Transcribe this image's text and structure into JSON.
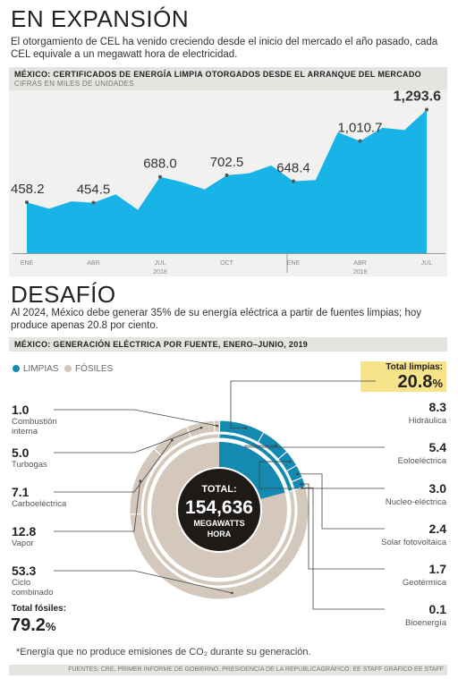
{
  "section1": {
    "title": "EN EXPANSIÓN",
    "lead": "El otorgamiento de CEL ha venido creciendo desde el inicio del mercado el año pasado, cada CEL equivale a un megawatt hora de electricidad.",
    "bar_title": "MÉXICO: CERTIFICADOS DE ENERGÍA LIMPIA OTORGADOS DESDE EL ARRANQUE DEL MERCADO",
    "bar_sub": "CIFRAS EN MILES DE UNIDADES"
  },
  "section2": {
    "title": "DESAFÍO",
    "lead": "Al 2024, México debe generar 35% de su energía eléctrica a partir de fuentes limpias; hoy produce apenas 20.8 por ciento.",
    "bar_title": "MÉXICO: GENERACIÓN ELÉCTRICA POR FUENTE, ENERO–JUNIO, 2019",
    "legend_clean": "LIMPIAS",
    "legend_fossil": "FÓSILES",
    "total_clean_label": "Total limpias:",
    "total_clean_value": "20.8",
    "total_fossil_label": "Total fósiles:",
    "total_fossil_value": "79.2",
    "pct": "%",
    "center_l1": "TOTAL:",
    "center_l2": "154,636",
    "center_l3": "MEGAWATTS",
    "center_l4": "HORA",
    "fossil_items": [
      {
        "value": "1.0",
        "label": "Combustión interna"
      },
      {
        "value": "5.0",
        "label": "Turbogas"
      },
      {
        "value": "7.1",
        "label": "Carboeléctrica"
      },
      {
        "value": "12.8",
        "label": "Vapor"
      },
      {
        "value": "53.3",
        "label": "Ciclo combinado"
      }
    ],
    "clean_items": [
      {
        "value": "8.3",
        "label": "Hidráulica"
      },
      {
        "value": "5.4",
        "label": "Eoloeléctrica"
      },
      {
        "value": "3.0",
        "label": "Nucleo-eléctrica"
      },
      {
        "value": "2.4",
        "label": "Solar fotovoltáica"
      },
      {
        "value": "1.7",
        "label": "Geotérmica"
      },
      {
        "value": "0.1",
        "label": "Bioenergía"
      }
    ]
  },
  "footnote": "*Energía que no produce emisiones de CO₂ durante su generación.",
  "source": "FUENTES: CRE, PRIMER INFORME DE GOBIERNO, PRESIDENCIA DE LA REPÚBLICAGRÁFICO: EE STAFF GRÁFICO EE STAFF",
  "colors": {
    "area": "#18b4e8",
    "clean": "#1489b2",
    "fossil": "#d3c8bb",
    "dark": "#1e1a18",
    "highlight": "#f7e48a"
  },
  "chart_data": [
    {
      "type": "area",
      "x": [
        "ENE 2018",
        "FEB 2018",
        "MAR 2018",
        "ABR 2018",
        "MAY 2018",
        "JUN 2018",
        "JUL 2018",
        "AGO 2018",
        "SEP 2018",
        "OCT 2018",
        "NOV 2018",
        "DIC 2018",
        "ENE 2019",
        "FEB 2019",
        "MAR 2019",
        "ABR 2019",
        "MAY 2019",
        "JUN 2019",
        "JUL 2019"
      ],
      "values": [
        458.2,
        400,
        467,
        454.5,
        530,
        390,
        688.0,
        640,
        575,
        702.5,
        720,
        790,
        648.4,
        660,
        1090,
        1010.7,
        1130,
        1110,
        1293.6
      ],
      "labeled": {
        "0": "458.2",
        "3": "454.5",
        "6": "688.0",
        "9": "702.5",
        "12": "648.4",
        "15": "1,010.7",
        "18": "1,293.6"
      },
      "tick_labels": {
        "0": "ENE",
        "3": "ABR",
        "6": "JUL",
        "9": "OCT",
        "12": "ENE",
        "15": "ABR",
        "18": "JUL"
      },
      "year_labels": {
        "6": "2018",
        "15": "2019"
      },
      "ylabel": "CIFRAS EN MILES DE UNIDADES",
      "ylim": [
        0,
        1400
      ]
    },
    {
      "type": "pie",
      "title": "MÉXICO: GENERACIÓN ELÉCTRICA POR FUENTE, ENERO–JUNIO, 2019",
      "inner": [
        {
          "name": "LIMPIAS",
          "value": 20.8
        },
        {
          "name": "FÓSILES",
          "value": 79.2
        }
      ],
      "outer": [
        {
          "name": "Hidráulica",
          "value": 8.3,
          "group": "LIMPIAS"
        },
        {
          "name": "Eoloeléctrica",
          "value": 5.4,
          "group": "LIMPIAS"
        },
        {
          "name": "Nucleo-eléctrica",
          "value": 3.0,
          "group": "LIMPIAS"
        },
        {
          "name": "Solar fotovoltáica",
          "value": 2.4,
          "group": "LIMPIAS"
        },
        {
          "name": "Geotérmica",
          "value": 1.7,
          "group": "LIMPIAS"
        },
        {
          "name": "Bioenergía",
          "value": 0.1,
          "group": "LIMPIAS"
        },
        {
          "name": "Ciclo combinado",
          "value": 53.3,
          "group": "FÓSILES"
        },
        {
          "name": "Vapor",
          "value": 12.8,
          "group": "FÓSILES"
        },
        {
          "name": "Carboeléctrica",
          "value": 7.1,
          "group": "FÓSILES"
        },
        {
          "name": "Turbogas",
          "value": 5.0,
          "group": "FÓSILES"
        },
        {
          "name": "Combustión interna",
          "value": 1.0,
          "group": "FÓSILES"
        }
      ]
    }
  ]
}
